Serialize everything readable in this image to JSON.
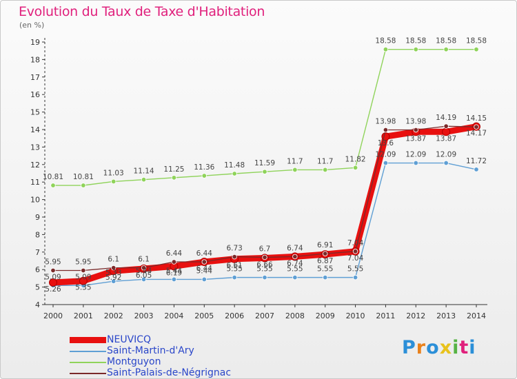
{
  "chart_data": {
    "type": "line",
    "title": "Evolution du Taux de Taxe d'Habitation",
    "unit": "(en %)",
    "x": [
      "2000",
      "2001",
      "2002",
      "2003",
      "2004",
      "2005",
      "2006",
      "2007",
      "2008",
      "2009",
      "2010",
      "2011",
      "2012",
      "2013",
      "2014"
    ],
    "yticks": [
      "4",
      "5",
      "6",
      "7",
      "8",
      "9",
      "10",
      "11",
      "12",
      "13",
      "14",
      "15",
      "16",
      "17",
      "18",
      "19"
    ],
    "ylim": [
      4,
      19
    ],
    "grid": false,
    "legend_position": "bottom-left",
    "series": [
      {
        "name": "NEUVICQ",
        "color": "#e8100f",
        "values": [
          5.26,
          5.35,
          5.92,
          6.05,
          6.19,
          6.44,
          6.61,
          6.66,
          6.74,
          6.87,
          7.04,
          13.6,
          13.87,
          13.87,
          14.17
        ],
        "labels": [
          "5.26",
          "5.35",
          "5.92",
          "6.05",
          "6.19",
          "6.44",
          "6.61",
          "6.66",
          "6.74",
          "6.87",
          "7.04",
          "13.6",
          "13.87",
          "13.87",
          "14.17"
        ]
      },
      {
        "name": "Saint-Martin-d'Ary",
        "color": "#5f9fd4",
        "values": [
          5.09,
          5.09,
          5.33,
          5.44,
          5.44,
          5.44,
          5.55,
          5.55,
          5.55,
          5.55,
          5.55,
          12.09,
          12.09,
          12.09,
          11.72
        ],
        "labels": [
          "5.09",
          "5.09",
          "5.33",
          "5.44",
          "5.44",
          "5.44",
          "5.55",
          "5.55",
          "5.55",
          "5.55",
          "5.55",
          "12.09",
          "12.09",
          "12.09",
          "11.72"
        ]
      },
      {
        "name": "Montguyon",
        "color": "#8fd35a",
        "values": [
          10.81,
          10.81,
          11.03,
          11.14,
          11.25,
          11.36,
          11.48,
          11.59,
          11.7,
          11.7,
          11.82,
          18.58,
          18.58,
          18.58,
          18.58
        ],
        "labels": [
          "10.81",
          "10.81",
          "11.03",
          "11.14",
          "11.25",
          "11.36",
          "11.48",
          "11.59",
          "11.7",
          "11.7",
          "11.82",
          "18.58",
          "18.58",
          "18.58",
          "18.58"
        ]
      },
      {
        "name": "Saint-Palais-de-Négrignac",
        "color": "#7a2a2a",
        "values": [
          5.95,
          5.95,
          6.1,
          6.1,
          6.44,
          6.44,
          6.73,
          6.7,
          6.74,
          6.91,
          7.04,
          13.98,
          13.98,
          14.19,
          14.15
        ],
        "labels": [
          "5.95",
          "5.95",
          "6.1",
          "6.1",
          "6.44",
          "6.44",
          "6.73",
          "6.7",
          "6.74",
          "6.91",
          "7.04",
          "13.98",
          "13.98",
          "14.19",
          "14.15"
        ]
      }
    ]
  },
  "brand": {
    "letters": [
      "P",
      "r",
      "o",
      "x",
      "i",
      "t",
      "i"
    ]
  }
}
